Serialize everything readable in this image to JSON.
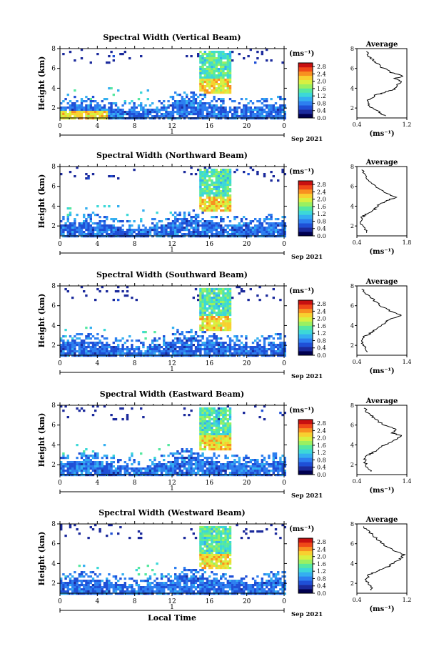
{
  "chart_data": [
    {
      "type": "heatmap",
      "title": "Spectral Width (Vertical Beam)",
      "ylabel": "Height (km)",
      "ylim": [
        1,
        8
      ],
      "yticks": [
        2,
        4,
        6,
        8
      ],
      "xlim": [
        0,
        24
      ],
      "xticks": [
        "0",
        "4",
        "8",
        "12",
        "16",
        "20",
        "0"
      ],
      "day_label": "1",
      "date_label": "Sep 2021",
      "colorbar": {
        "unit": "(ms⁻¹)",
        "ticks": [
          "0.0",
          "0.4",
          "0.8",
          "1.2",
          "1.6",
          "2.0",
          "2.4",
          "2.8"
        ],
        "range": [
          0,
          3.0
        ]
      },
      "profile": {
        "title": "Average",
        "xlabel": "(ms⁻¹)",
        "xlim": [
          0.4,
          1.2
        ],
        "xticks": [
          "0.4",
          "1.2"
        ],
        "ylim": [
          1,
          8
        ],
        "yticks": [
          2,
          4,
          6,
          8
        ],
        "points": [
          [
            0.85,
            1.2
          ],
          [
            0.75,
            1.6
          ],
          [
            0.6,
            2.2
          ],
          [
            0.58,
            2.8
          ],
          [
            0.7,
            3.3
          ],
          [
            0.85,
            3.6
          ],
          [
            1.0,
            3.9
          ],
          [
            1.05,
            4.3
          ],
          [
            1.1,
            4.7
          ],
          [
            1.0,
            5.0
          ],
          [
            1.15,
            5.2
          ],
          [
            0.95,
            5.6
          ],
          [
            0.8,
            6.1
          ],
          [
            0.7,
            6.6
          ],
          [
            0.6,
            7.2
          ],
          [
            0.55,
            7.8
          ]
        ]
      }
    },
    {
      "type": "heatmap",
      "title": "Spectral Width (Northward Beam)",
      "ylabel": "Height (km)",
      "ylim": [
        1,
        8
      ],
      "yticks": [
        2,
        4,
        6,
        8
      ],
      "xlim": [
        0,
        24
      ],
      "xticks": [
        "0",
        "4",
        "8",
        "12",
        "16",
        "20",
        "0"
      ],
      "day_label": "1",
      "date_label": "Sep 2021",
      "colorbar": {
        "unit": "(ms⁻¹)",
        "ticks": [
          "0.0",
          "0.4",
          "0.8",
          "1.2",
          "1.6",
          "2.0",
          "2.4",
          "2.8"
        ],
        "range": [
          0,
          3.0
        ]
      },
      "profile": {
        "title": "Average",
        "xlabel": "(ms⁻¹)",
        "xlim": [
          0.4,
          1.8
        ],
        "xticks": [
          "0.4",
          "1.8"
        ],
        "ylim": [
          1,
          8
        ],
        "yticks": [
          2,
          4,
          6,
          8
        ],
        "points": [
          [
            0.7,
            1.3
          ],
          [
            0.6,
            1.8
          ],
          [
            0.5,
            2.4
          ],
          [
            0.55,
            2.9
          ],
          [
            0.7,
            3.3
          ],
          [
            0.9,
            3.7
          ],
          [
            1.0,
            4.1
          ],
          [
            1.2,
            4.5
          ],
          [
            1.5,
            4.9
          ],
          [
            1.2,
            5.3
          ],
          [
            1.0,
            5.8
          ],
          [
            0.8,
            6.4
          ],
          [
            0.65,
            7.0
          ],
          [
            0.55,
            7.8
          ]
        ]
      }
    },
    {
      "type": "heatmap",
      "title": "Spectral Width (Southward Beam)",
      "ylabel": "Height (km)",
      "ylim": [
        1,
        8
      ],
      "yticks": [
        2,
        4,
        6,
        8
      ],
      "xlim": [
        0,
        24
      ],
      "xticks": [
        "0",
        "4",
        "8",
        "12",
        "16",
        "20",
        "0"
      ],
      "day_label": "1",
      "date_label": "Sep 2021",
      "colorbar": {
        "unit": "(ms⁻¹)",
        "ticks": [
          "0.0",
          "0.4",
          "0.8",
          "1.2",
          "1.6",
          "2.0",
          "2.4",
          "2.8"
        ],
        "range": [
          0,
          3.0
        ]
      },
      "profile": {
        "title": "Average",
        "xlabel": "(ms⁻¹)",
        "xlim": [
          0.4,
          1.4
        ],
        "xticks": [
          "0.4",
          "1.4"
        ],
        "ylim": [
          1,
          8
        ],
        "yticks": [
          2,
          4,
          6,
          8
        ],
        "points": [
          [
            0.6,
            1.3
          ],
          [
            0.55,
            1.8
          ],
          [
            0.5,
            2.4
          ],
          [
            0.55,
            2.9
          ],
          [
            0.7,
            3.3
          ],
          [
            0.8,
            3.7
          ],
          [
            0.95,
            4.2
          ],
          [
            1.05,
            4.6
          ],
          [
            1.3,
            5.0
          ],
          [
            1.1,
            5.4
          ],
          [
            0.9,
            5.9
          ],
          [
            0.75,
            6.5
          ],
          [
            0.6,
            7.1
          ],
          [
            0.5,
            7.8
          ]
        ]
      }
    },
    {
      "type": "heatmap",
      "title": "Spectral Width (Eastward Beam)",
      "ylabel": "Height (km)",
      "ylim": [
        1,
        8
      ],
      "yticks": [
        2,
        4,
        6,
        8
      ],
      "xlim": [
        0,
        24
      ],
      "xticks": [
        "0",
        "4",
        "8",
        "12",
        "16",
        "20",
        "0"
      ],
      "day_label": "1",
      "date_label": "Sep 2021",
      "colorbar": {
        "unit": "(ms⁻¹)",
        "ticks": [
          "0.0",
          "0.4",
          "0.8",
          "1.2",
          "1.6",
          "2.0",
          "2.4",
          "2.8"
        ],
        "range": [
          0,
          3.0
        ]
      },
      "profile": {
        "title": "Average",
        "xlabel": "(ms⁻¹)",
        "xlim": [
          0.4,
          1.4
        ],
        "xticks": [
          "0.4",
          "1.4"
        ],
        "ylim": [
          1,
          8
        ],
        "yticks": [
          2,
          4,
          6,
          8
        ],
        "points": [
          [
            0.7,
            1.3
          ],
          [
            0.6,
            1.8
          ],
          [
            0.55,
            2.4
          ],
          [
            0.6,
            2.9
          ],
          [
            0.75,
            3.3
          ],
          [
            0.85,
            3.7
          ],
          [
            1.0,
            4.1
          ],
          [
            1.15,
            4.5
          ],
          [
            1.3,
            4.9
          ],
          [
            1.1,
            5.2
          ],
          [
            1.2,
            5.6
          ],
          [
            0.9,
            6.1
          ],
          [
            0.75,
            6.7
          ],
          [
            0.6,
            7.3
          ],
          [
            0.55,
            7.8
          ]
        ]
      }
    },
    {
      "type": "heatmap",
      "title": "Spectral Width (Westward Beam)",
      "ylabel": "Height (km)",
      "ylim": [
        1,
        8
      ],
      "yticks": [
        2,
        4,
        6,
        8
      ],
      "xlim": [
        0,
        24
      ],
      "xticks": [
        "0",
        "4",
        "8",
        "12",
        "16",
        "20",
        "0"
      ],
      "day_label": "1",
      "date_label": "Sep 2021",
      "xlabel": "Local Time",
      "colorbar": {
        "unit": "(ms⁻¹)",
        "ticks": [
          "0.0",
          "0.4",
          "0.8",
          "1.2",
          "1.6",
          "2.0",
          "2.4",
          "2.8"
        ],
        "range": [
          0,
          3.0
        ]
      },
      "profile": {
        "title": "Average",
        "xlabel": "(ms⁻¹)",
        "xlim": [
          0.4,
          1.2
        ],
        "xticks": [
          "0.4",
          "1.2"
        ],
        "ylim": [
          1,
          8
        ],
        "yticks": [
          2,
          4,
          6,
          8
        ],
        "points": [
          [
            0.65,
            1.3
          ],
          [
            0.6,
            1.8
          ],
          [
            0.55,
            2.4
          ],
          [
            0.6,
            2.9
          ],
          [
            0.75,
            3.3
          ],
          [
            0.9,
            3.7
          ],
          [
            1.0,
            4.1
          ],
          [
            1.1,
            4.5
          ],
          [
            1.15,
            4.9
          ],
          [
            1.0,
            5.3
          ],
          [
            0.85,
            5.8
          ],
          [
            0.75,
            6.3
          ],
          [
            0.65,
            6.9
          ],
          [
            0.55,
            7.5
          ],
          [
            0.5,
            7.8
          ]
        ]
      }
    }
  ],
  "colormap": [
    "#000050",
    "#1b2a9c",
    "#1f4fd6",
    "#2d7ff0",
    "#34aff0",
    "#3cd8d8",
    "#55e8a0",
    "#9af060",
    "#d8f040",
    "#f8d030",
    "#f89020",
    "#f04818",
    "#c81010"
  ]
}
